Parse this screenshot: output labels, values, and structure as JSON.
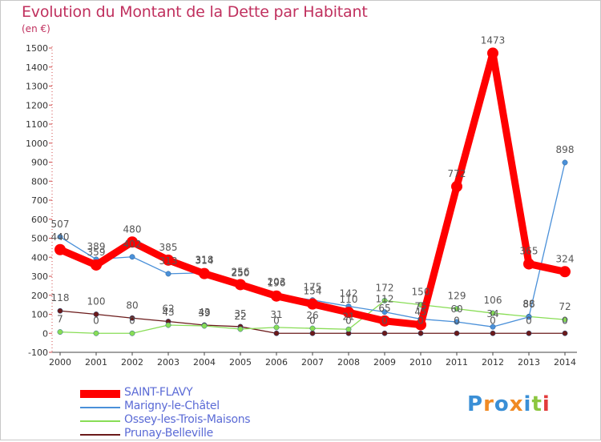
{
  "title": "Evolution du Montant de la Dette par Habitant",
  "unit_label": "(en €)",
  "logo": {
    "text": "Proxiti",
    "colors": [
      "#3a8fd6",
      "#f08a24",
      "#3a8fd6",
      "#f08a24",
      "#3a8fd6",
      "#8cc63f",
      "#e23c3c"
    ]
  },
  "chart_data": {
    "type": "line",
    "title": "Evolution du Montant de la Dette par Habitant",
    "ylabel": "(en €)",
    "xlabel": "",
    "x": [
      "2000",
      "2001",
      "2002",
      "2003",
      "2004",
      "2005",
      "2006",
      "2007",
      "2008",
      "2009",
      "2010",
      "2011",
      "2012",
      "2013",
      "2014"
    ],
    "ylim": [
      -100,
      1500
    ],
    "yticks": [
      -100,
      0,
      100,
      200,
      300,
      400,
      500,
      600,
      700,
      800,
      900,
      1000,
      1100,
      1200,
      1300,
      1400,
      1500
    ],
    "grid": false,
    "legend_position": "bottom-left",
    "series": [
      {
        "name": "SAINT-FLAVY",
        "color": "#ff0000",
        "values": [
          440,
          359,
          480,
          385,
          314,
          256,
          196,
          154,
          110,
          65,
          45,
          772,
          1473,
          365,
          324
        ],
        "labels": [
          "440",
          "359",
          "480",
          "385",
          "314",
          "256",
          "196",
          "154",
          "110",
          "65",
          "45",
          "772",
          "1473",
          "365",
          "324"
        ]
      },
      {
        "name": "Marigny-le-Châtel",
        "color": "#4a90d9",
        "values": [
          507,
          389,
          402,
          313,
          318,
          250,
          203,
          175,
          142,
          112,
          75,
          60,
          34,
          86,
          898
        ],
        "labels": [
          "507",
          "389",
          "402",
          "313",
          "318",
          "250",
          "203",
          "175",
          "142",
          "112",
          "75",
          "60",
          "34",
          "86",
          "898"
        ]
      },
      {
        "name": "Ossey-les-Trois-Maisons",
        "color": "#88dd55",
        "values": [
          7,
          0,
          0,
          43,
          39,
          22,
          31,
          26,
          21,
          172,
          150,
          129,
          106,
          88,
          72
        ],
        "labels": [
          "7",
          "0",
          "0",
          "43",
          "39",
          "22",
          "31",
          "26",
          "21",
          "172",
          "150",
          "129",
          "106",
          "88",
          "72"
        ]
      },
      {
        "name": "Prunay-Belleville",
        "color": "#6b1a1a",
        "values": [
          118,
          100,
          80,
          62,
          43,
          35,
          0,
          0,
          0,
          0,
          0,
          0,
          0,
          0,
          0
        ],
        "labels": [
          "118",
          "100",
          "80",
          "62",
          "43",
          "35",
          "0",
          "0",
          "0",
          "0",
          "0",
          "0",
          "0",
          "0",
          "0"
        ]
      }
    ]
  }
}
